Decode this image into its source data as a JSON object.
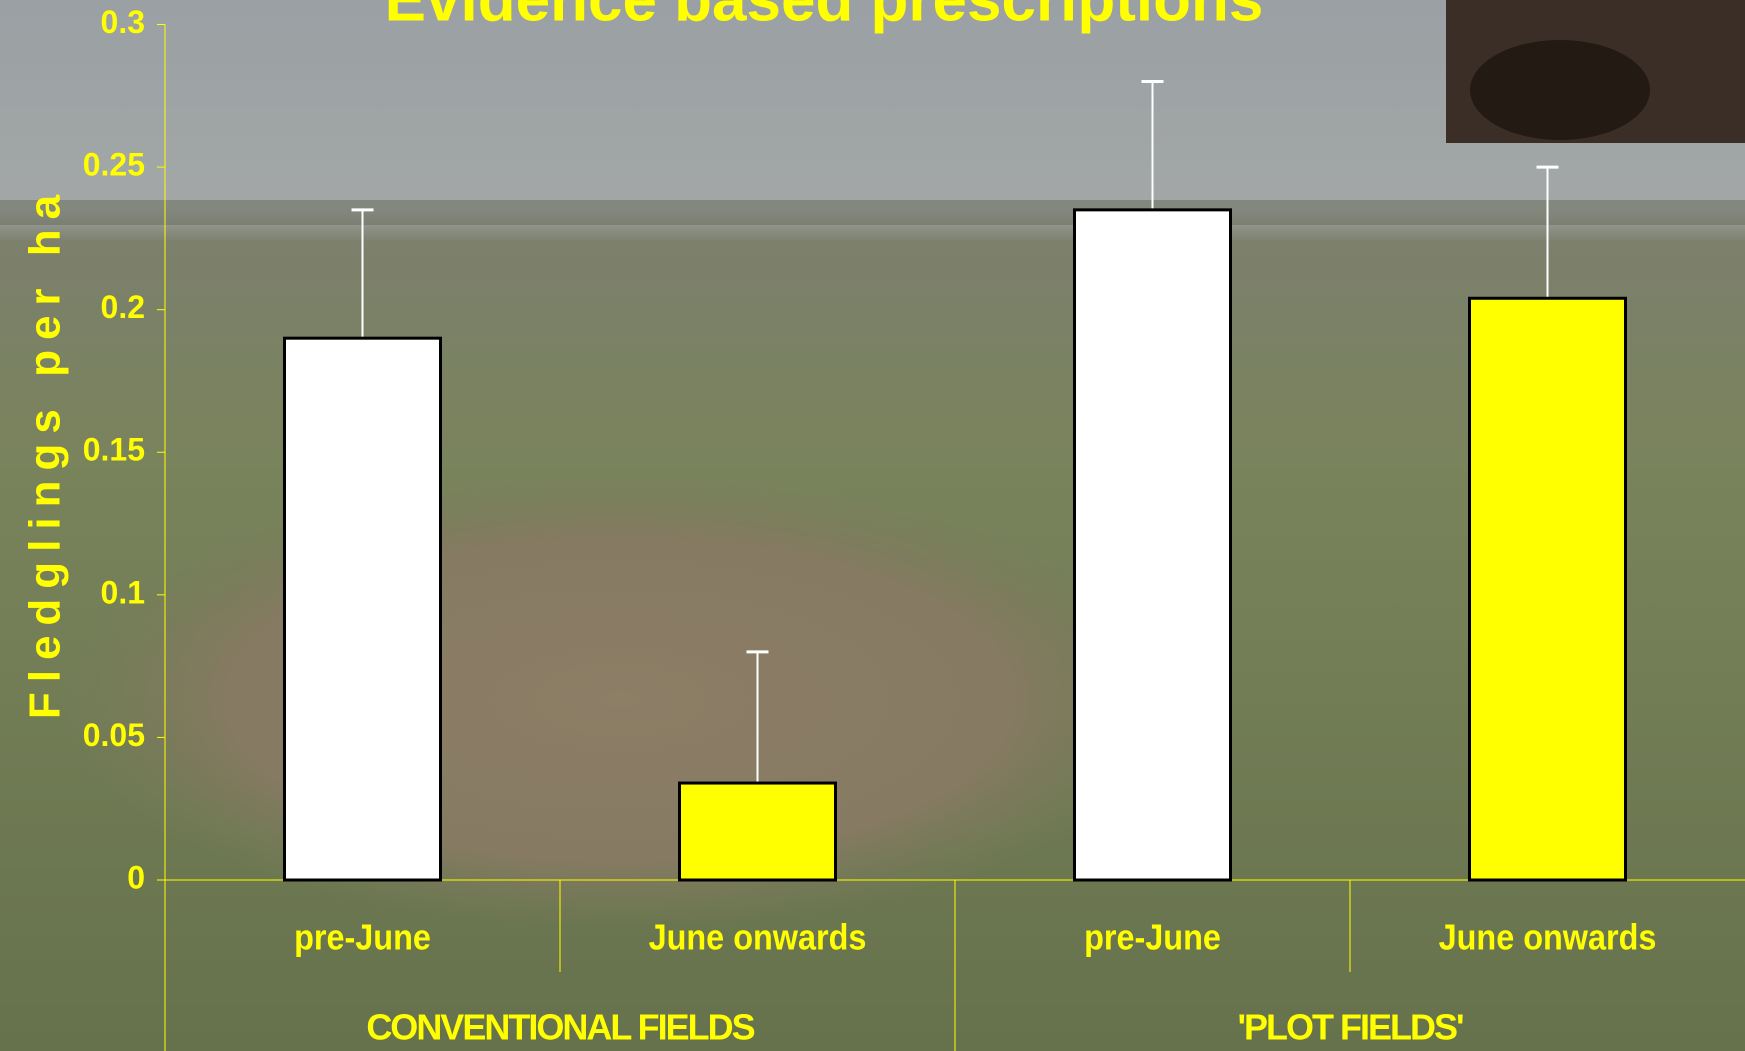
{
  "chart_data": {
    "type": "bar",
    "title": "Evidence based prescriptions",
    "y_label": "Fledglings per ha",
    "categories": [
      "pre-June",
      "June onwards",
      "pre-June",
      "June onwards"
    ],
    "groups": [
      "CONVENTIONAL FIELDS",
      "'PLOT FIELDS'"
    ],
    "values": [
      0.19,
      0.034,
      0.235,
      0.204
    ],
    "errors": [
      0.045,
      0.046,
      0.045,
      0.046
    ],
    "colors": [
      "#ffffff",
      "#ffff00",
      "#ffffff",
      "#ffff00"
    ],
    "ylim": [
      0,
      0.3
    ],
    "yticks": [
      0,
      0.05,
      0.1,
      0.15,
      0.2,
      0.25,
      0.3
    ]
  }
}
